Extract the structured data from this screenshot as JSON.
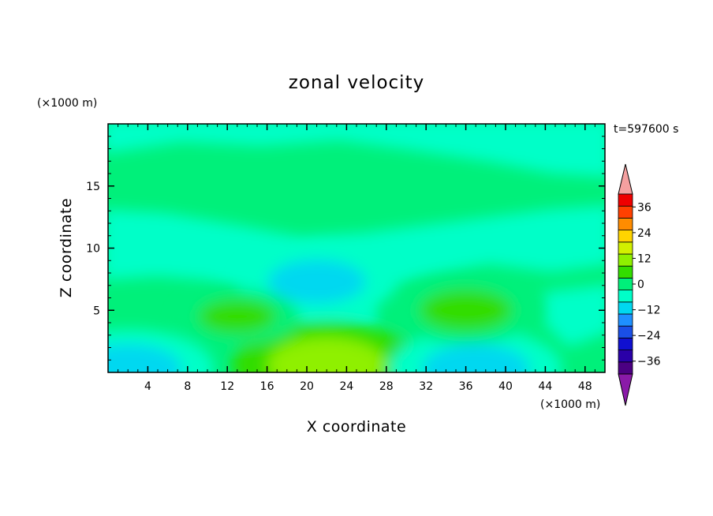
{
  "chart_data": {
    "type": "heatmap",
    "title": "zonal velocity",
    "xlabel": "X coordinate",
    "ylabel": "Z coordinate",
    "x_unit": "(×1000 m)",
    "y_unit": "(×1000 m)",
    "time_label": "t=597600 s",
    "xlim": [
      0,
      50
    ],
    "ylim": [
      0,
      20
    ],
    "x_ticks": [
      4,
      8,
      12,
      16,
      20,
      24,
      28,
      32,
      36,
      40,
      44,
      48
    ],
    "y_ticks": [
      5,
      10,
      15
    ],
    "colorbar": {
      "ticks": [
        36,
        24,
        12,
        0,
        -12,
        -24,
        -36
      ],
      "levels": [
        -42,
        -36,
        -30,
        -24,
        -18,
        -12,
        -6,
        0,
        6,
        12,
        18,
        24,
        30,
        36,
        42
      ],
      "colors": [
        "#4b0082",
        "#2a00a8",
        "#1010d0",
        "#1a4fe6",
        "#1e90ff",
        "#00d8f0",
        "#00ffc8",
        "#00f07a",
        "#33dd00",
        "#8ff000",
        "#d2f000",
        "#ffd400",
        "#ff8c00",
        "#ff4000",
        "#ee0000"
      ],
      "under_color": "#8a1aa8",
      "over_color": "#f4a0a0"
    },
    "features": [
      {
        "x": 22,
        "z": 0.6,
        "u": 14
      },
      {
        "x": 37,
        "z": 0.3,
        "u": -12
      },
      {
        "x": 2,
        "z": 0.3,
        "u": -12
      },
      {
        "x": 21,
        "z": 7.3,
        "u": -10
      },
      {
        "x": 36,
        "z": 5.0,
        "u": 9
      },
      {
        "x": 13,
        "z": 4.5,
        "u": 6
      }
    ]
  }
}
